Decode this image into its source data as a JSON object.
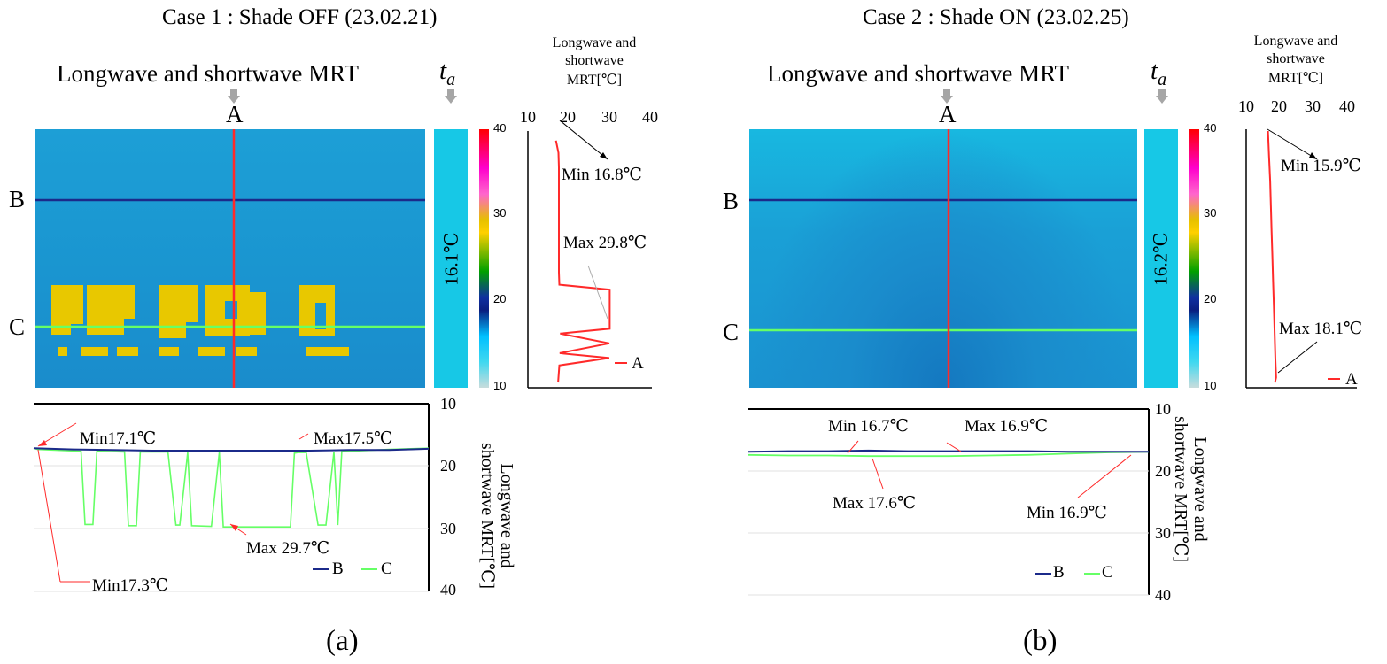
{
  "panels": [
    {
      "case_title": "Case 1 : Shade OFF (23.02.21)",
      "map_title": "Longwave and shortwave MRT",
      "ta_symbol": "t",
      "ta_sub": "a",
      "label_a": "A",
      "label_b": "B",
      "label_c": "C",
      "ta_value": "16.1℃",
      "panel_label": "(a)",
      "colorbar_ticks": [
        "40",
        "30",
        "20",
        "10"
      ],
      "vprofile": {
        "title_line1": "Longwave and",
        "title_line2": "shortwave",
        "title_line3": "MRT[℃]",
        "x_ticks": [
          "10",
          "20",
          "30",
          "40"
        ],
        "min_label": "Min 16.8℃",
        "max_label": "Max 29.8℃",
        "legend": "A"
      },
      "hprofile": {
        "y_ticks": [
          "10",
          "20",
          "30",
          "40"
        ],
        "ylabel_line1": "Longwave and",
        "ylabel_line2": "shortwave MRT[℃]",
        "annotations": [
          "Min17.1℃",
          "Max17.5℃",
          "Max 29.7℃",
          "Min17.3℃"
        ],
        "legend_b": "B",
        "legend_c": "C"
      }
    },
    {
      "case_title": "Case 2 : Shade ON (23.02.25)",
      "map_title": "Longwave and shortwave MRT",
      "ta_symbol": "t",
      "ta_sub": "a",
      "label_a": "A",
      "label_b": "B",
      "label_c": "C",
      "ta_value": "16.2℃",
      "panel_label": "(b)",
      "colorbar_ticks": [
        "40",
        "30",
        "20",
        "10"
      ],
      "vprofile": {
        "title_line1": "Longwave and",
        "title_line2": "shortwave",
        "title_line3": "MRT[℃]",
        "x_ticks": [
          "10",
          "20",
          "30",
          "40"
        ],
        "min_label": "Min 15.9℃",
        "max_label": "Max 18.1℃",
        "legend": "A"
      },
      "hprofile": {
        "y_ticks": [
          "10",
          "20",
          "30",
          "40"
        ],
        "ylabel_line1": "Longwave and",
        "ylabel_line2": "shortwave MRT[℃]",
        "annotations": [
          "Min 16.7℃",
          "Max 16.9℃",
          "Max 17.6℃",
          "Min 16.9℃"
        ],
        "legend_b": "B",
        "legend_c": "C"
      }
    }
  ],
  "colors": {
    "line_a": "#ff2a2a",
    "line_b": "#1b2a8a",
    "line_c": "#66ff66",
    "hot_patch": "#e8c800",
    "ta_bar": "#17c8e6"
  },
  "chart_data": [
    {
      "type": "line",
      "title": "Case 1 vertical profile along A",
      "xlabel": "Longwave and shortwave MRT[℃]",
      "xlim": [
        10,
        40
      ],
      "y_inverted": true,
      "series": [
        {
          "name": "A",
          "x": [
            16.8,
            17.4,
            17.5,
            17.5,
            17.5,
            17.5,
            17.5,
            17.5,
            17.6,
            29.8,
            29.8,
            29.8,
            17.8,
            29.7,
            17.7,
            29.7,
            17.6,
            17.3
          ],
          "y": [
            0.01,
            0.06,
            0.12,
            0.2,
            0.3,
            0.4,
            0.5,
            0.55,
            0.6,
            0.62,
            0.7,
            0.78,
            0.8,
            0.84,
            0.88,
            0.9,
            0.93,
            1.0
          ]
        }
      ]
    },
    {
      "type": "line",
      "title": "Case 1 horizontal profiles along B and C",
      "ylabel": "Longwave and shortwave MRT[℃]",
      "ylim": [
        40,
        10
      ],
      "series": [
        {
          "name": "B",
          "x": [
            0,
            0.1,
            0.2,
            0.3,
            0.4,
            0.5,
            0.6,
            0.7,
            0.8,
            0.9,
            1.0
          ],
          "y": [
            17.1,
            17.3,
            17.4,
            17.5,
            17.5,
            17.5,
            17.5,
            17.5,
            17.4,
            17.4,
            17.2
          ]
        },
        {
          "name": "C",
          "x": [
            0,
            0.01,
            0.12,
            0.13,
            0.15,
            0.16,
            0.23,
            0.24,
            0.26,
            0.27,
            0.34,
            0.36,
            0.37,
            0.39,
            0.4,
            0.45,
            0.47,
            0.48,
            0.5,
            0.51,
            0.55,
            0.65,
            0.66,
            0.67,
            0.69,
            0.72,
            0.74,
            0.76,
            0.77,
            0.78,
            0.8,
            0.9,
            1.0
          ],
          "y": [
            17.1,
            17.3,
            17.6,
            29.3,
            29.3,
            17.6,
            17.7,
            29.5,
            29.5,
            17.7,
            17.7,
            29.4,
            29.4,
            17.8,
            29.5,
            29.6,
            17.8,
            29.7,
            29.7,
            29.7,
            29.7,
            29.7,
            17.9,
            17.8,
            17.8,
            29.4,
            29.4,
            17.7,
            29.4,
            17.6,
            17.6,
            17.3,
            17.1
          ]
        }
      ]
    },
    {
      "type": "line",
      "title": "Case 2 vertical profile along A",
      "xlabel": "Longwave and shortwave MRT[℃]",
      "xlim": [
        10,
        40
      ],
      "y_inverted": true,
      "series": [
        {
          "name": "A",
          "x": [
            15.9,
            16.2,
            16.5,
            16.7,
            16.9,
            17.1,
            17.3,
            17.5,
            17.7,
            17.9,
            18.1,
            17.8
          ],
          "y": [
            0.0,
            0.1,
            0.2,
            0.3,
            0.4,
            0.5,
            0.6,
            0.7,
            0.8,
            0.9,
            0.98,
            1.0
          ]
        }
      ]
    },
    {
      "type": "line",
      "title": "Case 2 horizontal profiles along B and C",
      "ylabel": "Longwave and shortwave MRT[℃]",
      "ylim": [
        40,
        10
      ],
      "series": [
        {
          "name": "B",
          "x": [
            0,
            0.1,
            0.2,
            0.3,
            0.4,
            0.5,
            0.6,
            0.7,
            0.8,
            0.9,
            1.0
          ],
          "y": [
            16.9,
            16.8,
            16.8,
            16.7,
            16.8,
            16.8,
            16.8,
            16.8,
            16.9,
            16.9,
            16.9
          ]
        },
        {
          "name": "C",
          "x": [
            0,
            0.1,
            0.2,
            0.3,
            0.4,
            0.5,
            0.6,
            0.7,
            0.8,
            0.9,
            1.0
          ],
          "y": [
            17.4,
            17.5,
            17.5,
            17.6,
            17.6,
            17.6,
            17.5,
            17.4,
            17.2,
            17.0,
            16.9
          ]
        }
      ]
    }
  ]
}
